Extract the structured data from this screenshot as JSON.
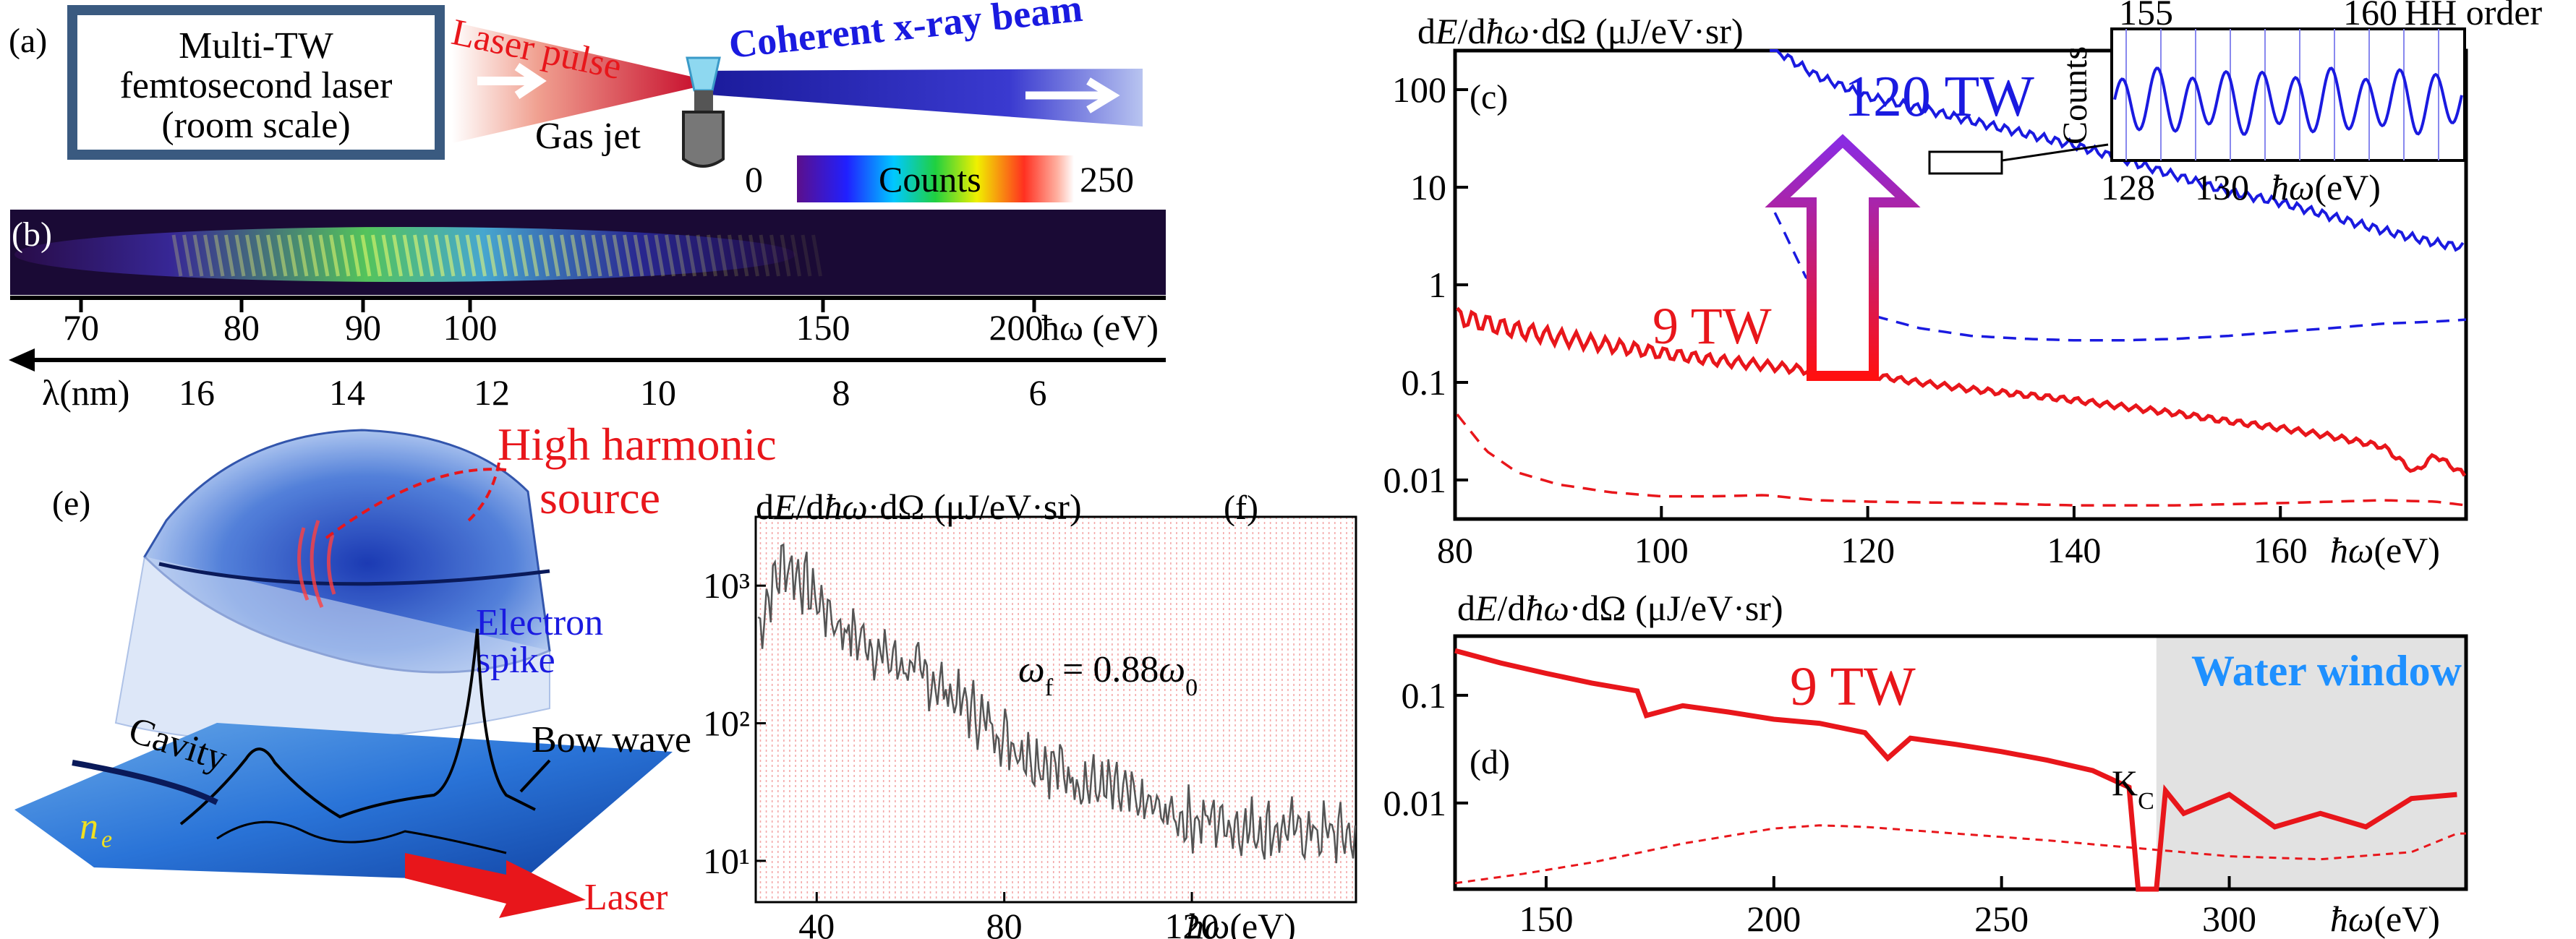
{
  "figure": {
    "panel_a": {
      "label": "(a)",
      "laser_box": [
        "Multi-TW",
        "femtosecond laser",
        "(room scale)"
      ],
      "laser_pulse": "Laser pulse",
      "beam": "Coherent x-ray beam",
      "gas_jet": "Gas jet"
    },
    "panel_b": {
      "label": "(b)",
      "colorbar": {
        "min": "0",
        "title": "Counts",
        "max": "250"
      },
      "energy_axis": {
        "ticks": [
          "70",
          "80",
          "90",
          "100",
          "150",
          "200"
        ],
        "unit": "ħω (eV)"
      },
      "wavelength_axis": {
        "unit": "λ(nm)",
        "ticks": [
          "16",
          "14",
          "12",
          "10",
          "8",
          "6"
        ]
      }
    },
    "panel_e": {
      "label": "(e)",
      "hh_source": [
        "High harmonic",
        "source"
      ],
      "electron_spike": [
        "Electron",
        "spike"
      ],
      "bow_wave": "Bow wave",
      "cavity": "Cavity",
      "ne": "n",
      "ne_sub": "e",
      "laser": "Laser"
    },
    "colors": {
      "red": "#e8161b",
      "blue": "#1a1ae0",
      "water_window": "#1e90ff",
      "gray_fill": "#e2e2e2"
    }
  },
  "chart_data": [
    {
      "panel": "(c)",
      "type": "line",
      "ylabel": "dE/dħω·dΩ (μJ/eV·sr)",
      "xlabel": "ħω(eV)",
      "xlim": [
        80,
        178
      ],
      "ylim_log10": [
        -2.4,
        2.4
      ],
      "xticks": [
        "80",
        "100",
        "120",
        "140",
        "160"
      ],
      "yticks": [
        "100",
        "10",
        "1",
        "0.1",
        "0.01"
      ],
      "annotations": {
        "high": "120 TW",
        "low": "9 TW"
      },
      "series": [
        {
          "name": "120 TW",
          "style": "solid blue",
          "x": [
            110,
            115,
            120,
            125,
            130,
            135,
            140,
            145,
            150,
            155,
            160,
            165,
            170,
            175,
            178
          ],
          "y": [
            300,
            140,
            85,
            65,
            48,
            36,
            27,
            19,
            13,
            9,
            7,
            5,
            3.6,
            2.7,
            2.4
          ]
        },
        {
          "name": "120 TW background",
          "style": "dashed blue",
          "x": [
            111,
            114,
            117,
            120,
            125,
            130,
            135,
            140,
            145,
            150,
            155,
            160,
            165,
            170,
            175,
            178
          ],
          "y": [
            5.5,
            1.2,
            0.7,
            0.5,
            0.36,
            0.3,
            0.28,
            0.27,
            0.27,
            0.28,
            0.3,
            0.33,
            0.36,
            0.4,
            0.42,
            0.44
          ]
        },
        {
          "name": "9 TW",
          "style": "solid red",
          "x": [
            80,
            85,
            90,
            95,
            100,
            105,
            110,
            115,
            120,
            125,
            130,
            135,
            140,
            145,
            150,
            155,
            160,
            165,
            170,
            173,
            175,
            178
          ],
          "y": [
            0.48,
            0.36,
            0.29,
            0.24,
            0.2,
            0.17,
            0.15,
            0.13,
            0.12,
            0.1,
            0.085,
            0.075,
            0.066,
            0.056,
            0.048,
            0.04,
            0.034,
            0.028,
            0.022,
            0.012,
            0.018,
            0.011
          ]
        },
        {
          "name": "9 TW background",
          "style": "dashed red",
          "x": [
            80,
            83,
            86,
            90,
            95,
            100,
            105,
            110,
            115,
            120,
            130,
            140,
            150,
            160,
            165,
            170,
            175,
            178
          ],
          "y": [
            0.05,
            0.02,
            0.012,
            0.009,
            0.0075,
            0.0068,
            0.0068,
            0.007,
            0.0062,
            0.006,
            0.0058,
            0.0055,
            0.0055,
            0.0058,
            0.006,
            0.0062,
            0.006,
            0.0055
          ]
        }
      ],
      "inset": {
        "ylabel": "Counts",
        "top_axis": {
          "ticks": [
            "155",
            "160"
          ],
          "label": "HH order"
        },
        "bottom_axis": {
          "ticks": [
            "128",
            "130"
          ],
          "label": "ħω(eV)"
        }
      }
    },
    {
      "panel": "(d)",
      "type": "line",
      "ylabel": "dE/dħω·dΩ (μJ/eV·sr)",
      "xlabel": "ħω(eV)",
      "xlim": [
        130,
        352
      ],
      "ylim_log10": [
        -2.8,
        -0.45
      ],
      "xticks": [
        "150",
        "200",
        "250",
        "300"
      ],
      "yticks": [
        "0.1",
        "0.01"
      ],
      "annotations": {
        "trace": "9 TW",
        "region": "Water window",
        "edge": "K",
        "edge_sub": "C"
      },
      "water_window_start": 284,
      "series": [
        {
          "name": "9 TW",
          "style": "solid red",
          "x": [
            130,
            140,
            150,
            160,
            170,
            172,
            180,
            190,
            200,
            210,
            220,
            225,
            230,
            240,
            250,
            260,
            270,
            278,
            280,
            282,
            284,
            286,
            290,
            300,
            310,
            320,
            330,
            340,
            350
          ],
          "y": [
            0.26,
            0.2,
            0.16,
            0.13,
            0.11,
            0.065,
            0.08,
            0.07,
            0.06,
            0.055,
            0.045,
            0.026,
            0.04,
            0.035,
            0.03,
            0.025,
            0.02,
            0.014,
            0.0015,
            0.0015,
            0.0015,
            0.013,
            0.008,
            0.012,
            0.006,
            0.008,
            0.006,
            0.011,
            0.012
          ]
        },
        {
          "name": "9 TW background",
          "style": "dashed red",
          "x": [
            130,
            145,
            160,
            180,
            200,
            210,
            220,
            240,
            260,
            280,
            300,
            320,
            340,
            350
          ],
          "y": [
            0.0018,
            0.0022,
            0.0028,
            0.0042,
            0.0058,
            0.0062,
            0.006,
            0.0052,
            0.0045,
            0.0038,
            0.0032,
            0.003,
            0.0035,
            0.0052
          ]
        }
      ]
    },
    {
      "panel": "(f)",
      "type": "line",
      "ylabel": "dE/dħω·dΩ (μJ/eV·sr)",
      "xlabel": "ħω(eV)",
      "xlim": [
        27,
        155
      ],
      "ylim_log10": [
        0.7,
        3.5
      ],
      "xticks": [
        "40",
        "80",
        "120"
      ],
      "yticks": [
        "10³",
        "10²",
        "10¹"
      ],
      "annotation": "ω_f = 0.88ω_0",
      "series": [
        {
          "name": "simulated spectrum",
          "style": "solid gray",
          "x": [
            27,
            30,
            33,
            36,
            40,
            45,
            50,
            55,
            60,
            65,
            70,
            75,
            80,
            85,
            90,
            95,
            100,
            105,
            110,
            115,
            120,
            125,
            130,
            135,
            140,
            145,
            150,
            155
          ],
          "y": [
            400,
            900,
            1500,
            1200,
            800,
            500,
            400,
            300,
            250,
            200,
            150,
            110,
            80,
            60,
            50,
            40,
            35,
            30,
            25,
            22,
            20,
            20,
            18,
            17,
            17,
            16,
            16,
            15
          ]
        }
      ]
    }
  ]
}
